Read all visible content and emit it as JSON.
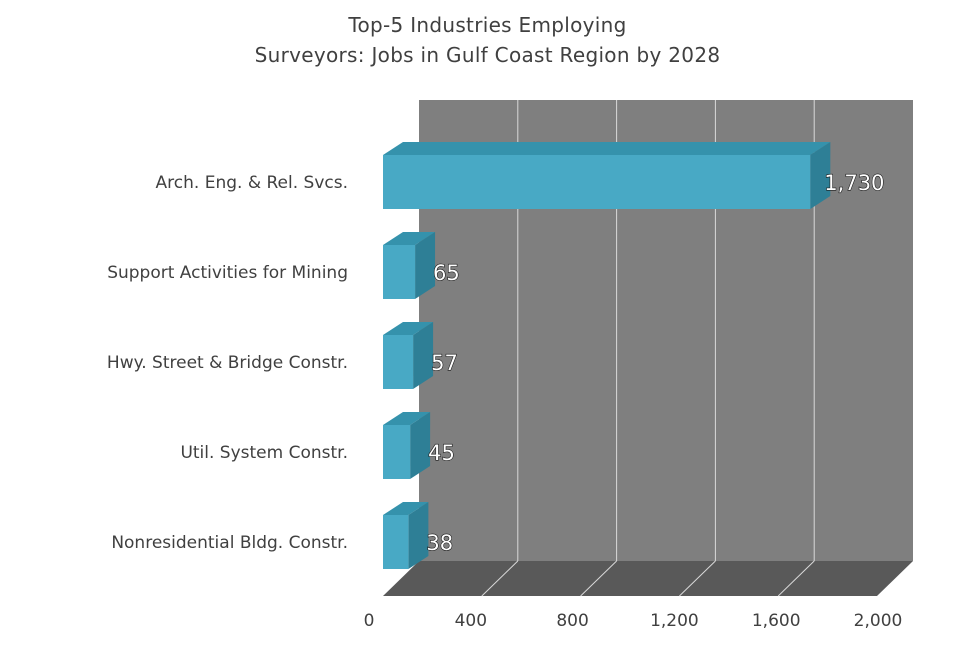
{
  "chart_data": {
    "type": "bar",
    "orientation": "horizontal",
    "three_d": true,
    "title": [
      "Top-5 Industries Employing",
      "Surveyors: Jobs in Gulf Coast Region by 2028"
    ],
    "categories": [
      "Arch. Eng. & Rel. Svcs.",
      "Support Activities for Mining",
      "Hwy. Street & Bridge Constr.",
      "Util. System Constr.",
      "Nonresidential Bldg. Constr."
    ],
    "values": [
      1730,
      65,
      57,
      45,
      38
    ],
    "data_labels": [
      "1,730",
      "65",
      "57",
      "45",
      "38"
    ],
    "xlim": [
      0,
      2000
    ],
    "x_ticks": [
      0,
      400,
      800,
      1200,
      1600,
      2000
    ],
    "x_tick_labels": [
      "0",
      "400",
      "800",
      "1,200",
      "1,600",
      "2,000"
    ],
    "grid": "vertical",
    "colors": {
      "bar": "#48A9C5",
      "bar_side": "#2E7F96",
      "bar_top": "#3592AC",
      "back_wall": "#7F7F7F",
      "floor": "#595959",
      "gridline": "#D9D9D9"
    }
  }
}
